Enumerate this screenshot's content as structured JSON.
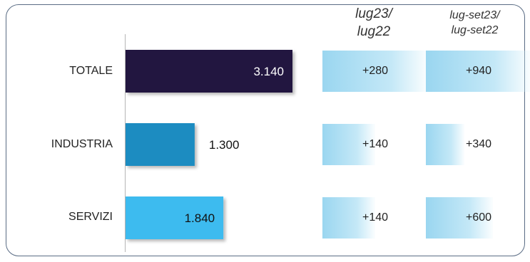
{
  "chart_data": {
    "type": "bar",
    "orientation": "horizontal",
    "categories": [
      "TOTALE",
      "INDUSTRIA",
      "SERVIZI"
    ],
    "values": [
      3140,
      1300,
      1840
    ],
    "value_labels": [
      "3.140",
      "1.300",
      "1.840"
    ],
    "bar_colors": [
      "#24193f",
      "#1a8cc1",
      "#3dbbef"
    ],
    "xlim": [
      0,
      3300
    ],
    "grid": false,
    "legend": "none",
    "delta_columns": [
      {
        "header_line1": "lug23/",
        "header_line2": "lug22",
        "labels": [
          "+280",
          "+140",
          "+140"
        ],
        "values": [
          280,
          140,
          140
        ]
      },
      {
        "header_line1": "lug-set23/",
        "header_line2": "lug-set22",
        "labels": [
          "+940",
          "+340",
          "+600"
        ],
        "values": [
          940,
          340,
          600
        ]
      }
    ]
  }
}
